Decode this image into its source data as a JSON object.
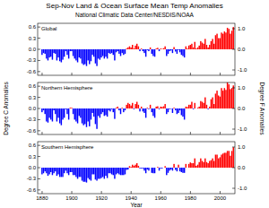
{
  "header": {
    "title": "Sep-Nov Land & Ocean Surface Mean Temp Anomalies",
    "subtitle": "National Climatic Data Center/NESDIS/NOAA"
  },
  "chart_data": [
    {
      "type": "bar",
      "title": "Global",
      "grid": false,
      "tick_labels": "y",
      "x": [
        1880,
        1881,
        1882,
        1883,
        1884,
        1885,
        1886,
        1887,
        1888,
        1889,
        1890,
        1891,
        1892,
        1893,
        1894,
        1895,
        1896,
        1897,
        1898,
        1899,
        1900,
        1901,
        1902,
        1903,
        1904,
        1905,
        1906,
        1907,
        1908,
        1909,
        1910,
        1911,
        1912,
        1913,
        1914,
        1915,
        1916,
        1917,
        1918,
        1919,
        1920,
        1921,
        1922,
        1923,
        1924,
        1925,
        1926,
        1927,
        1928,
        1929,
        1930,
        1931,
        1932,
        1933,
        1934,
        1935,
        1936,
        1937,
        1938,
        1939,
        1940,
        1941,
        1942,
        1943,
        1944,
        1945,
        1946,
        1947,
        1948,
        1949,
        1950,
        1951,
        1952,
        1953,
        1954,
        1955,
        1956,
        1957,
        1958,
        1959,
        1960,
        1961,
        1962,
        1963,
        1964,
        1965,
        1966,
        1967,
        1968,
        1969,
        1970,
        1971,
        1972,
        1973,
        1974,
        1975,
        1976,
        1977,
        1978,
        1979,
        1980,
        1981,
        1982,
        1983,
        1984,
        1985,
        1986,
        1987,
        1988,
        1989,
        1990,
        1991,
        1992,
        1993,
        1994,
        1995,
        1996,
        1997,
        1998,
        1999,
        2000,
        2001,
        2002,
        2003,
        2004,
        2005,
        2006,
        2007,
        2008,
        2009
      ],
      "values": [
        -0.15,
        -0.1,
        -0.12,
        -0.25,
        -0.3,
        -0.22,
        -0.2,
        -0.28,
        -0.1,
        -0.12,
        -0.3,
        -0.22,
        -0.32,
        -0.35,
        -0.28,
        -0.2,
        -0.05,
        -0.15,
        -0.25,
        -0.05,
        -0.05,
        -0.18,
        -0.25,
        -0.3,
        -0.35,
        -0.22,
        -0.25,
        -0.38,
        -0.42,
        -0.4,
        -0.45,
        -0.3,
        -0.4,
        -0.32,
        -0.15,
        -0.2,
        -0.38,
        -0.45,
        -0.25,
        -0.28,
        -0.22,
        -0.18,
        -0.25,
        -0.2,
        -0.25,
        -0.1,
        -0.12,
        -0.1,
        -0.15,
        -0.3,
        -0.08,
        -0.05,
        -0.12,
        -0.18,
        -0.1,
        -0.15,
        -0.12,
        0.02,
        0.05,
        0.08,
        0.05,
        0.12,
        0.02,
        0.1,
        0.15,
        0.08,
        -0.05,
        0.02,
        -0.05,
        -0.1,
        -0.2,
        -0.02,
        -0.05,
        0.05,
        -0.12,
        -0.18,
        -0.2,
        0.02,
        0.04,
        -0.05,
        0.02,
        0.01,
        0.03,
        0.08,
        -0.18,
        -0.12,
        -0.05,
        -0.03,
        -0.1,
        0.06,
        -0.06,
        -0.12,
        -0.02,
        -0.08,
        -0.15,
        -0.18,
        -0.22,
        0.08,
        0.02,
        0.1,
        0.12,
        0.15,
        0.05,
        0.2,
        0.02,
        0.05,
        0.1,
        0.22,
        0.18,
        0.15,
        0.28,
        0.12,
        0.05,
        0.12,
        0.22,
        0.28,
        0.15,
        0.38,
        0.42,
        0.3,
        0.3,
        0.45,
        0.42,
        0.48,
        0.45,
        0.58,
        0.55,
        0.42,
        0.5,
        0.6
      ],
      "colors": [
        "blue",
        "blue",
        "blue",
        "blue",
        "blue",
        "blue",
        "blue",
        "blue",
        "blue",
        "blue",
        "blue",
        "blue",
        "blue",
        "blue",
        "blue",
        "blue",
        "blue",
        "blue",
        "blue",
        "blue",
        "blue",
        "blue",
        "blue",
        "blue",
        "blue",
        "blue",
        "blue",
        "blue",
        "blue",
        "blue",
        "blue",
        "blue",
        "blue",
        "blue",
        "blue",
        "blue",
        "blue",
        "blue",
        "blue",
        "blue",
        "blue",
        "blue",
        "blue",
        "blue",
        "blue",
        "blue",
        "blue",
        "blue",
        "blue",
        "blue",
        "blue",
        "blue",
        "blue",
        "blue",
        "blue",
        "blue",
        "blue",
        "red",
        "red",
        "red",
        "red",
        "red",
        "red",
        "red",
        "red",
        "red",
        "blue",
        "red",
        "blue",
        "blue",
        "blue",
        "blue",
        "blue",
        "red",
        "blue",
        "blue",
        "blue",
        "red",
        "red",
        "blue",
        "red",
        "red",
        "red",
        "red",
        "blue",
        "blue",
        "blue",
        "blue",
        "blue",
        "red",
        "blue",
        "blue",
        "blue",
        "blue",
        "blue",
        "blue",
        "blue",
        "red",
        "red",
        "red",
        "red",
        "red",
        "red",
        "red",
        "red",
        "red",
        "red",
        "red",
        "red",
        "red",
        "red",
        "red",
        "red",
        "red",
        "red",
        "red",
        "red",
        "red",
        "red",
        "red",
        "red",
        "red",
        "red",
        "red",
        "red",
        "red",
        "red",
        "red",
        "red",
        "red"
      ],
      "xlim": [
        1877,
        2010
      ],
      "xticks": [
        1880,
        1900,
        1920,
        1940,
        1960,
        1980,
        2000
      ],
      "ylim": [
        -0.7,
        0.7
      ],
      "yticks": [
        -0.6,
        -0.3,
        {
          "value": 0,
          "label": "0.0"
        },
        0.3,
        0.6
      ],
      "y2lim": [
        -1.26,
        1.26
      ],
      "y2ticks": [
        {
          "value": -1,
          "label": "-1.0"
        },
        {
          "value": 0,
          "label": "0.0"
        },
        {
          "value": 1,
          "label": "1.0"
        }
      ]
    },
    {
      "type": "bar",
      "title": "Northern Hemisphere",
      "grid": false,
      "tick_labels": "y",
      "ylabel": "Degree C Anomalies",
      "y2label": "Degree F Anomalies",
      "x": [
        1880,
        1881,
        1882,
        1883,
        1884,
        1885,
        1886,
        1887,
        1888,
        1889,
        1890,
        1891,
        1892,
        1893,
        1894,
        1895,
        1896,
        1897,
        1898,
        1899,
        1900,
        1901,
        1902,
        1903,
        1904,
        1905,
        1906,
        1907,
        1908,
        1909,
        1910,
        1911,
        1912,
        1913,
        1914,
        1915,
        1916,
        1917,
        1918,
        1919,
        1920,
        1921,
        1922,
        1923,
        1924,
        1925,
        1926,
        1927,
        1928,
        1929,
        1930,
        1931,
        1932,
        1933,
        1934,
        1935,
        1936,
        1937,
        1938,
        1939,
        1940,
        1941,
        1942,
        1943,
        1944,
        1945,
        1946,
        1947,
        1948,
        1949,
        1950,
        1951,
        1952,
        1953,
        1954,
        1955,
        1956,
        1957,
        1958,
        1959,
        1960,
        1961,
        1962,
        1963,
        1964,
        1965,
        1966,
        1967,
        1968,
        1969,
        1970,
        1971,
        1972,
        1973,
        1974,
        1975,
        1976,
        1977,
        1978,
        1979,
        1980,
        1981,
        1982,
        1983,
        1984,
        1985,
        1986,
        1987,
        1988,
        1989,
        1990,
        1991,
        1992,
        1993,
        1994,
        1995,
        1996,
        1997,
        1998,
        1999,
        2000,
        2001,
        2002,
        2003,
        2004,
        2005,
        2006,
        2007,
        2008,
        2009
      ],
      "values": [
        -0.1,
        -0.05,
        -0.15,
        -0.35,
        -0.38,
        -0.25,
        -0.3,
        -0.35,
        -0.05,
        -0.15,
        -0.35,
        -0.25,
        -0.4,
        -0.45,
        -0.3,
        -0.25,
        -0.02,
        -0.15,
        -0.3,
        0.02,
        0.02,
        -0.15,
        -0.3,
        -0.35,
        -0.4,
        -0.2,
        -0.25,
        -0.4,
        -0.45,
        -0.42,
        -0.5,
        -0.35,
        -0.48,
        -0.3,
        -0.12,
        -0.22,
        -0.42,
        -0.55,
        -0.2,
        -0.25,
        -0.15,
        -0.1,
        -0.2,
        -0.18,
        -0.22,
        -0.05,
        -0.08,
        -0.02,
        -0.1,
        -0.28,
        0.02,
        0.05,
        -0.05,
        -0.15,
        0.02,
        -0.1,
        -0.05,
        0.1,
        0.15,
        0.12,
        0.08,
        0.15,
        -0.02,
        0.12,
        0.18,
        0.1,
        -0.08,
        0.05,
        -0.08,
        -0.12,
        -0.25,
        0.02,
        -0.02,
        0.1,
        -0.1,
        -0.2,
        -0.25,
        0.05,
        0.06,
        -0.02,
        0.05,
        0.04,
        0.06,
        0.12,
        -0.15,
        -0.1,
        -0.02,
        -0.01,
        -0.12,
        0.02,
        -0.05,
        -0.15,
        -0.12,
        -0.05,
        -0.18,
        -0.22,
        -0.3,
        0.05,
        0.04,
        0.1,
        0.1,
        0.18,
        -0.02,
        0.15,
        0.0,
        0.02,
        0.05,
        0.2,
        0.18,
        0.15,
        0.3,
        0.1,
        -0.02,
        0.05,
        0.25,
        0.3,
        0.12,
        0.4,
        0.48,
        0.35,
        0.32,
        0.55,
        0.48,
        0.55,
        0.5,
        0.7,
        0.65,
        0.52,
        0.55,
        0.62
      ],
      "colors": [
        "blue",
        "blue",
        "blue",
        "blue",
        "blue",
        "blue",
        "blue",
        "blue",
        "blue",
        "blue",
        "blue",
        "blue",
        "blue",
        "blue",
        "blue",
        "blue",
        "blue",
        "blue",
        "blue",
        "red",
        "red",
        "blue",
        "blue",
        "blue",
        "blue",
        "blue",
        "blue",
        "blue",
        "blue",
        "blue",
        "blue",
        "blue",
        "blue",
        "blue",
        "blue",
        "blue",
        "blue",
        "blue",
        "blue",
        "blue",
        "blue",
        "blue",
        "blue",
        "blue",
        "blue",
        "blue",
        "blue",
        "blue",
        "blue",
        "blue",
        "red",
        "red",
        "blue",
        "blue",
        "red",
        "blue",
        "blue",
        "red",
        "red",
        "red",
        "red",
        "red",
        "blue",
        "red",
        "red",
        "red",
        "blue",
        "red",
        "blue",
        "blue",
        "blue",
        "red",
        "blue",
        "red",
        "blue",
        "blue",
        "blue",
        "red",
        "red",
        "blue",
        "red",
        "red",
        "red",
        "red",
        "blue",
        "blue",
        "blue",
        "blue",
        "blue",
        "red",
        "blue",
        "blue",
        "blue",
        "blue",
        "blue",
        "blue",
        "blue",
        "red",
        "red",
        "red",
        "red",
        "red",
        "blue",
        "red",
        "red",
        "red",
        "red",
        "red",
        "red",
        "red",
        "red",
        "red",
        "blue",
        "red",
        "red",
        "red",
        "red",
        "red",
        "red",
        "red",
        "red",
        "red",
        "red",
        "red",
        "red",
        "red",
        "red",
        "red",
        "red",
        "red"
      ],
      "xlim": [
        1877,
        2010
      ],
      "xticks": [
        1880,
        1900,
        1920,
        1940,
        1960,
        1980,
        2000
      ],
      "ylim": [
        -0.7,
        0.7
      ],
      "yticks": [
        -0.6,
        -0.3,
        {
          "value": 0,
          "label": "0.0"
        },
        0.3,
        0.6
      ],
      "y2lim": [
        -1.26,
        1.26
      ],
      "y2ticks": [
        {
          "value": -1,
          "label": "-1.0"
        },
        {
          "value": 0,
          "label": "0.0"
        },
        {
          "value": 1,
          "label": "1.0"
        }
      ]
    },
    {
      "type": "bar",
      "title": "Southern Hemisphere",
      "grid": false,
      "tick_labels": true,
      "xlabel": "Year",
      "x": [
        1880,
        1881,
        1882,
        1883,
        1884,
        1885,
        1886,
        1887,
        1888,
        1889,
        1890,
        1891,
        1892,
        1893,
        1894,
        1895,
        1896,
        1897,
        1898,
        1899,
        1900,
        1901,
        1902,
        1903,
        1904,
        1905,
        1906,
        1907,
        1908,
        1909,
        1910,
        1911,
        1912,
        1913,
        1914,
        1915,
        1916,
        1917,
        1918,
        1919,
        1920,
        1921,
        1922,
        1923,
        1924,
        1925,
        1926,
        1927,
        1928,
        1929,
        1930,
        1931,
        1932,
        1933,
        1934,
        1935,
        1936,
        1937,
        1938,
        1939,
        1940,
        1941,
        1942,
        1943,
        1944,
        1945,
        1946,
        1947,
        1948,
        1949,
        1950,
        1951,
        1952,
        1953,
        1954,
        1955,
        1956,
        1957,
        1958,
        1959,
        1960,
        1961,
        1962,
        1963,
        1964,
        1965,
        1966,
        1967,
        1968,
        1969,
        1970,
        1971,
        1972,
        1973,
        1974,
        1975,
        1976,
        1977,
        1978,
        1979,
        1980,
        1981,
        1982,
        1983,
        1984,
        1985,
        1986,
        1987,
        1988,
        1989,
        1990,
        1991,
        1992,
        1993,
        1994,
        1995,
        1996,
        1997,
        1998,
        1999,
        2000,
        2001,
        2002,
        2003,
        2004,
        2005,
        2006,
        2007,
        2008,
        2009
      ],
      "values": [
        -0.18,
        -0.15,
        -0.1,
        -0.15,
        -0.22,
        -0.18,
        -0.12,
        -0.2,
        -0.15,
        -0.1,
        -0.22,
        -0.18,
        -0.25,
        -0.25,
        -0.25,
        -0.15,
        -0.08,
        -0.15,
        -0.2,
        -0.12,
        -0.12,
        -0.2,
        -0.2,
        -0.25,
        -0.3,
        -0.25,
        -0.25,
        -0.35,
        -0.38,
        -0.38,
        -0.4,
        -0.28,
        -0.32,
        -0.35,
        -0.18,
        -0.18,
        -0.32,
        -0.35,
        -0.3,
        -0.3,
        -0.28,
        -0.25,
        -0.3,
        -0.22,
        -0.28,
        -0.15,
        -0.15,
        -0.18,
        -0.2,
        -0.3,
        -0.18,
        -0.15,
        -0.18,
        -0.2,
        -0.2,
        -0.2,
        -0.18,
        -0.06,
        -0.05,
        0.04,
        0.02,
        0.08,
        0.05,
        0.08,
        0.12,
        0.05,
        -0.02,
        -0.02,
        -0.02,
        -0.08,
        -0.15,
        -0.05,
        -0.08,
        0.0,
        -0.14,
        -0.15,
        -0.15,
        0.0,
        0.02,
        -0.08,
        -0.02,
        -0.02,
        0.0,
        0.04,
        -0.2,
        -0.14,
        -0.08,
        -0.05,
        -0.08,
        0.1,
        -0.06,
        -0.1,
        0.08,
        -0.1,
        -0.12,
        -0.14,
        -0.14,
        0.1,
        0.0,
        0.1,
        0.14,
        0.12,
        0.12,
        0.25,
        0.05,
        0.08,
        0.15,
        0.25,
        0.18,
        0.15,
        0.25,
        0.15,
        0.12,
        0.18,
        0.2,
        0.25,
        0.18,
        0.35,
        0.35,
        0.25,
        0.28,
        0.35,
        0.38,
        0.4,
        0.4,
        0.45,
        0.45,
        0.32,
        0.45,
        0.55
      ],
      "colors": [
        "blue",
        "blue",
        "blue",
        "blue",
        "blue",
        "blue",
        "blue",
        "blue",
        "blue",
        "blue",
        "blue",
        "blue",
        "blue",
        "blue",
        "blue",
        "blue",
        "blue",
        "blue",
        "blue",
        "blue",
        "blue",
        "blue",
        "blue",
        "blue",
        "blue",
        "blue",
        "blue",
        "blue",
        "blue",
        "blue",
        "blue",
        "blue",
        "blue",
        "blue",
        "blue",
        "blue",
        "blue",
        "blue",
        "blue",
        "blue",
        "blue",
        "blue",
        "blue",
        "blue",
        "blue",
        "blue",
        "blue",
        "blue",
        "blue",
        "blue",
        "blue",
        "blue",
        "blue",
        "blue",
        "blue",
        "blue",
        "blue",
        "blue",
        "blue",
        "red",
        "red",
        "red",
        "red",
        "red",
        "red",
        "red",
        "blue",
        "blue",
        "blue",
        "blue",
        "blue",
        "blue",
        "blue",
        "red",
        "blue",
        "blue",
        "blue",
        "red",
        "red",
        "blue",
        "blue",
        "blue",
        "red",
        "red",
        "blue",
        "blue",
        "blue",
        "blue",
        "blue",
        "red",
        "blue",
        "blue",
        "red",
        "blue",
        "blue",
        "blue",
        "blue",
        "red",
        "red",
        "red",
        "red",
        "red",
        "red",
        "red",
        "red",
        "red",
        "red",
        "red",
        "red",
        "red",
        "red",
        "red",
        "red",
        "red",
        "red",
        "red",
        "red",
        "red",
        "red",
        "red",
        "red",
        "red",
        "red",
        "red",
        "red",
        "red",
        "red",
        "red",
        "red",
        "red"
      ],
      "xlim": [
        1877,
        2010
      ],
      "xticks": [
        1880,
        1900,
        1920,
        1940,
        1960,
        1980,
        2000
      ],
      "ylim": [
        -0.7,
        0.7
      ],
      "yticks": [
        -0.6,
        -0.3,
        {
          "value": 0,
          "label": "0.0"
        },
        0.3,
        0.6
      ],
      "y2lim": [
        -1.26,
        1.26
      ],
      "y2ticks": [
        {
          "value": -1,
          "label": "-1.0"
        },
        {
          "value": 0,
          "label": "0.0"
        },
        {
          "value": 1,
          "label": "1.0"
        }
      ]
    }
  ]
}
